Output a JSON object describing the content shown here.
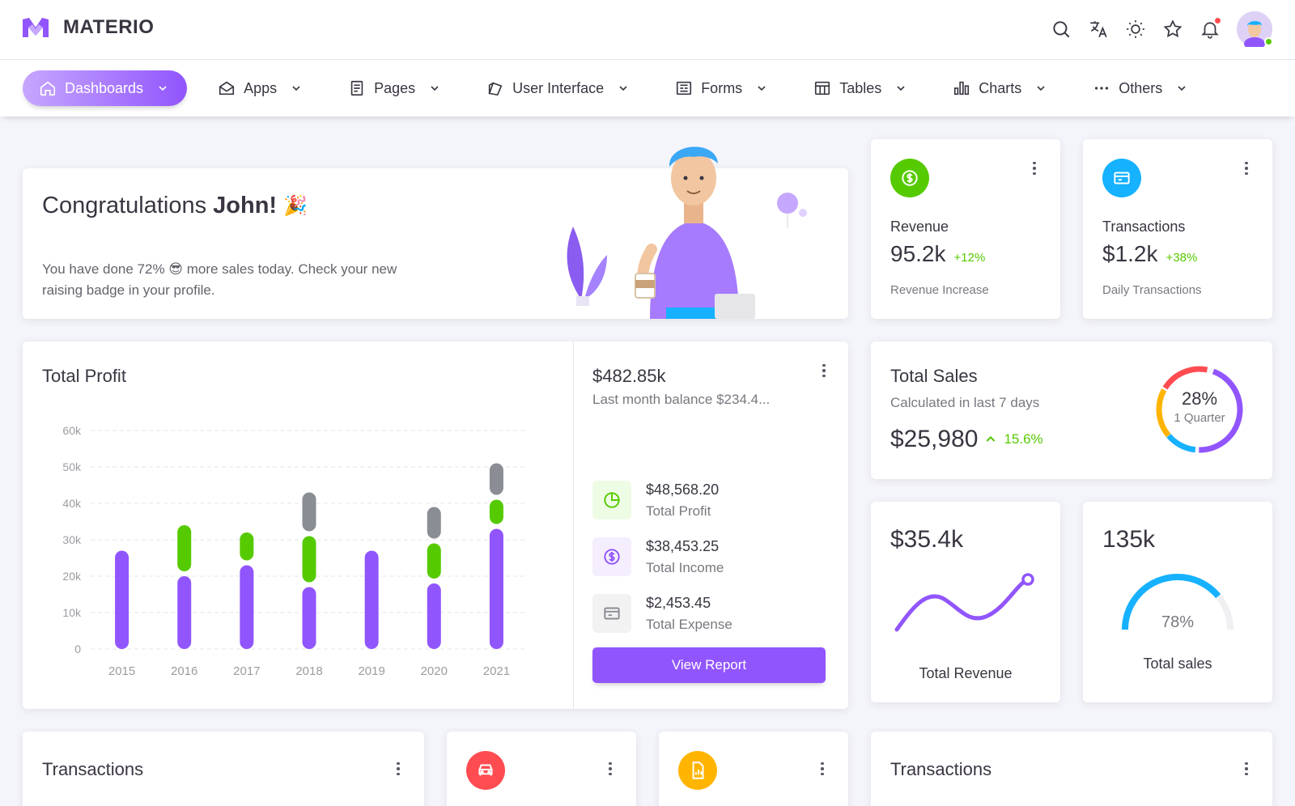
{
  "app": {
    "brand": "MATERIO"
  },
  "topbar": {
    "icons": [
      "search-icon",
      "translate-icon",
      "sun-icon",
      "star-icon",
      "bell-icon"
    ],
    "notification_dot_color": "#ff4c51",
    "online_color": "#56ca00"
  },
  "nav": {
    "items": [
      {
        "label": "Dashboards",
        "icon": "home-icon",
        "active": true
      },
      {
        "label": "Apps",
        "icon": "mail-icon"
      },
      {
        "label": "Pages",
        "icon": "page-icon"
      },
      {
        "label": "User Interface",
        "icon": "layers-icon"
      },
      {
        "label": "Forms",
        "icon": "form-icon"
      },
      {
        "label": "Tables",
        "icon": "table-icon"
      },
      {
        "label": "Charts",
        "icon": "chart-icon"
      },
      {
        "label": "Others",
        "icon": "dots-icon"
      }
    ]
  },
  "congrats": {
    "title_prefix": "Congratulations",
    "name": "John!",
    "emoji": "🎉",
    "text": "You have done 72% 😎 more sales today. Check your new raising badge in your profile."
  },
  "revenue_card": {
    "label": "Revenue",
    "value": "95.2k",
    "change": "+12%",
    "sub": "Revenue Increase",
    "icon_color": "#56ca00"
  },
  "transactions_card": {
    "label": "Transactions",
    "value": "$1.2k",
    "change": "+38%",
    "sub": "Daily Transactions",
    "icon_color": "#16b1ff"
  },
  "total_profit": {
    "title": "Total Profit",
    "balance": "$482.85k",
    "balance_sub": "Last month balance $234.4...",
    "metrics": [
      {
        "value": "$48,568.20",
        "label": "Total Profit",
        "icon": "pie-icon",
        "color": "#56ca00",
        "bg": "#eefbe5"
      },
      {
        "value": "$38,453.25",
        "label": "Total Income",
        "icon": "dollar-icon",
        "color": "#9155fd",
        "bg": "#f4eefe"
      },
      {
        "value": "$2,453.45",
        "label": "Total Expense",
        "icon": "card-icon",
        "color": "#8a8d93",
        "bg": "#f2f2f3"
      }
    ],
    "button": "View Report"
  },
  "chart_data": {
    "type": "bar",
    "stacked": true,
    "categories": [
      "2015",
      "2016",
      "2017",
      "2018",
      "2019",
      "2020",
      "2021"
    ],
    "y_ticks": [
      "0",
      "10k",
      "20k",
      "30k",
      "40k",
      "50k",
      "60k"
    ],
    "ylim": [
      0,
      60
    ],
    "series": [
      {
        "color": "#9155fd",
        "values": [
          27,
          20,
          23,
          17,
          27,
          18,
          33
        ]
      },
      {
        "color": "#56ca00",
        "values": [
          0,
          14,
          9,
          14,
          0,
          11,
          8
        ]
      },
      {
        "color": "#8a8d93",
        "values": [
          0,
          0,
          0,
          12,
          0,
          10,
          10
        ]
      }
    ],
    "grid": true
  },
  "total_sales": {
    "title": "Total Sales",
    "sub": "Calculated in last 7 days",
    "value": "$25,980",
    "change": "15.6%",
    "donut_percent": "28%",
    "donut_label": "1 Quarter"
  },
  "total_revenue_card": {
    "value": "$35.4k",
    "label": "Total Revenue"
  },
  "total_sales_card": {
    "value": "135k",
    "percent": "78%",
    "fraction": 0.78,
    "label": "Total sales"
  },
  "bottom": {
    "transactions_left": "Transactions",
    "transactions_right": "Transactions",
    "car_icon_color": "#ff4c51",
    "report_icon_color": "#ffb400"
  }
}
